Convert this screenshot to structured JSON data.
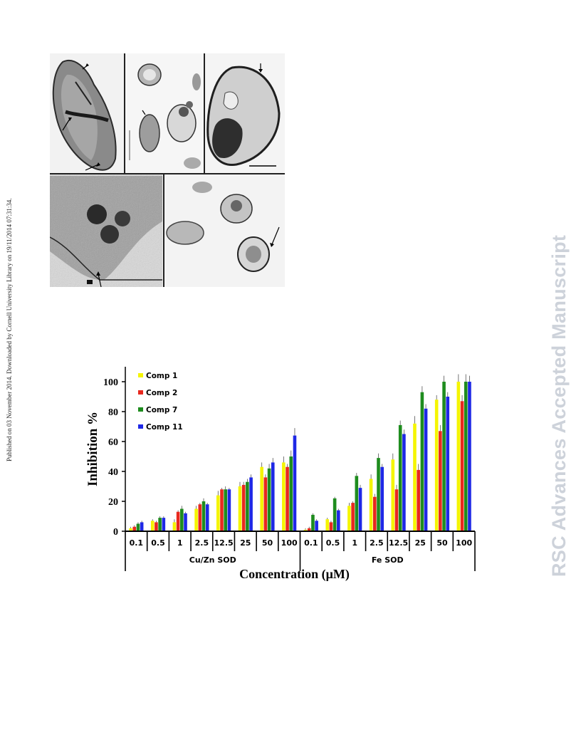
{
  "side_text": {
    "left": "Published on 03 November 2014. Downloaded by Cornell University Library on 19/11/2014 07:31:34.",
    "right": "RSC Advances Accepted Manuscript"
  },
  "chart_data": {
    "type": "bar",
    "ylabel": "Inhibition %",
    "xlabel": "Concentration (μM)",
    "ylim": [
      0,
      110
    ],
    "yticks": [
      "0",
      "20",
      "40",
      "60",
      "80",
      "100"
    ],
    "categories": [
      "0.1",
      "0.5",
      "1",
      "2.5",
      "12.5",
      "25",
      "50",
      "100",
      "0.1",
      "0.5",
      "1",
      "2.5",
      "12.5",
      "25",
      "50",
      "100"
    ],
    "groups": [
      {
        "label": "Cu/Zn SOD",
        "start": 0,
        "end": 7
      },
      {
        "label": "Fe SOD",
        "start": 8,
        "end": 15
      }
    ],
    "legend_position": "top-left",
    "series": [
      {
        "name": "Comp 1",
        "color": "#f5f500",
        "values": [
          2,
          7,
          6,
          15,
          24,
          30,
          43,
          46,
          1,
          8,
          17,
          35,
          48,
          72,
          88,
          100
        ],
        "errors": [
          1,
          1,
          2,
          2,
          3,
          3,
          3,
          4,
          1,
          1,
          2,
          3,
          4,
          5,
          3,
          5
        ]
      },
      {
        "name": "Comp 2",
        "color": "#e8281e",
        "values": [
          3,
          6,
          13,
          18,
          28,
          31,
          36,
          43,
          2,
          6,
          19,
          23,
          28,
          41,
          67,
          87
        ],
        "errors": [
          1,
          1,
          1,
          1,
          1,
          2,
          2,
          2,
          1,
          1,
          1,
          2,
          3,
          4,
          4,
          4
        ]
      },
      {
        "name": "Comp 7",
        "color": "#1e8c1e",
        "values": [
          5,
          9,
          15,
          20,
          28,
          33,
          42,
          50,
          11,
          22,
          37,
          49,
          71,
          93,
          100,
          100
        ],
        "errors": [
          1,
          1,
          2,
          2,
          2,
          2,
          3,
          4,
          1,
          1,
          2,
          3,
          3,
          4,
          4,
          5
        ]
      },
      {
        "name": "Comp 11",
        "color": "#1e28e6",
        "values": [
          6,
          9,
          12,
          18,
          28,
          36,
          46,
          64,
          7,
          14,
          29,
          43,
          65,
          82,
          90,
          100
        ],
        "errors": [
          1,
          1,
          1,
          1,
          1,
          2,
          3,
          5,
          1,
          1,
          2,
          2,
          3,
          3,
          3,
          4
        ]
      }
    ]
  }
}
